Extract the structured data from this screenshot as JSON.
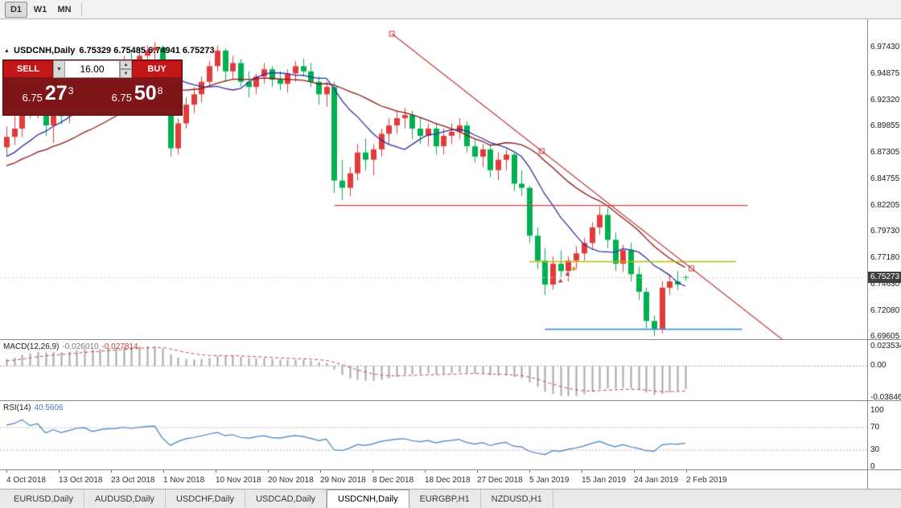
{
  "topbar": {
    "timeframes": [
      {
        "label": "D1",
        "active": true
      },
      {
        "label": "W1",
        "active": false
      },
      {
        "label": "MN",
        "active": false
      }
    ]
  },
  "chart": {
    "symbol_title": "USDCNH,Daily",
    "ohlc": "6.75329 6.75485 6.74941 6.75273"
  },
  "trade_panel": {
    "sell_label": "SELL",
    "buy_label": "BUY",
    "volume": "16.00",
    "sell_price": {
      "main": "6.75",
      "big": "27",
      "sup": "3"
    },
    "buy_price": {
      "main": "6.75",
      "big": "50",
      "sup": "8"
    }
  },
  "price_axis": {
    "labels": [
      "6.97430",
      "6.94875",
      "6.92320",
      "6.89855",
      "6.87305",
      "6.84755",
      "6.82205",
      "6.79730",
      "6.77180",
      "6.74630",
      "6.72080",
      "6.69605"
    ],
    "current": "6.75273"
  },
  "macd": {
    "name": "MACD(12,26,9)",
    "value_main": "-0.026010",
    "value_signal": "-0.027814",
    "axis": [
      "0.023534",
      "0.00",
      "-0.038466"
    ]
  },
  "rsi": {
    "name": "RSI(14)",
    "value": "40.5606",
    "axis": [
      "100",
      "70",
      "30",
      "0"
    ]
  },
  "date_axis": [
    "4 Oct 2018",
    "13 Oct 2018",
    "23 Oct 2018",
    "1 Nov 2018",
    "10 Nov 2018",
    "20 Nov 2018",
    "29 Nov 2018",
    "8 Dec 2018",
    "18 Dec 2018",
    "27 Dec 2018",
    "5 Jan 2019",
    "15 Jan 2019",
    "24 Jan 2019",
    "2 Feb 2019"
  ],
  "tabs": [
    {
      "label": "EURUSD,Daily",
      "active": false
    },
    {
      "label": "AUDUSD,Daily",
      "active": false
    },
    {
      "label": "USDCHF,Daily",
      "active": false
    },
    {
      "label": "USDCAD,Daily",
      "active": false
    },
    {
      "label": "USDCNH,Daily",
      "active": true
    },
    {
      "label": "EURGBP,H1",
      "active": false
    },
    {
      "label": "NZDUSD,H1",
      "active": false
    }
  ],
  "chart_data": {
    "type": "candlestick",
    "symbol": "USDCNH",
    "timeframe": "Daily",
    "price_min": 6.695,
    "price_max": 6.998,
    "bid": 6.75273,
    "ask": 6.75508,
    "ma_periods": {
      "fast": 10,
      "slow": 21
    },
    "macd_params": [
      12,
      26,
      9
    ],
    "rsi_period": 14,
    "macd_range": {
      "max": 0.023534,
      "min": -0.038466
    },
    "colors": {
      "bull": "#e23b3b",
      "bear": "#00b050",
      "ma_fast": "#2d2da8",
      "ma_slow": "#8e1212",
      "bid_line": "#c8c8c8",
      "macd_hist": "#a6a6a6",
      "macd_signal": "#cc4444",
      "rsi": "#3f7fc1"
    },
    "hlines": [
      {
        "price": 6.82205,
        "i1": 42,
        "i2": 95,
        "color": "#d24040",
        "width": 1.4
      },
      {
        "price": 6.768,
        "i1": 67,
        "i2": 93.5,
        "color": "#b6ba0c",
        "width": 1.6
      },
      {
        "price": 6.703,
        "i1": 69,
        "i2": 94.3,
        "color": "#4f94d4",
        "width": 1.8
      }
    ],
    "trendline": {
      "i1": 49.4,
      "p1": 6.9872,
      "i2": 87.8,
      "p2": 6.7615,
      "color": "#c03a3a"
    },
    "markers": [
      {
        "i": 71,
        "price": 6.7495,
        "type": "tri",
        "color": "#d04040"
      },
      {
        "i": 71.9,
        "price": 6.756,
        "type": "tri",
        "color": "#d04040"
      },
      {
        "i": 72.7,
        "price": 6.761,
        "type": "diamond",
        "color": "#dba21a"
      }
    ],
    "pre_closes": [
      6.842,
      6.846,
      6.844,
      6.85,
      6.847,
      6.853,
      6.85,
      6.856,
      6.853,
      6.859,
      6.856,
      6.862,
      6.859,
      6.865,
      6.862,
      6.868,
      6.865,
      6.871,
      6.868,
      6.874,
      6.872
    ],
    "candles": [
      [
        6.878,
        6.898,
        6.869,
        6.888
      ],
      [
        6.888,
        6.908,
        6.88,
        6.896
      ],
      [
        6.896,
        6.932,
        6.888,
        6.926
      ],
      [
        6.926,
        6.936,
        6.906,
        6.913
      ],
      [
        6.913,
        6.931,
        6.906,
        6.926
      ],
      [
        6.926,
        6.936,
        6.889,
        6.899
      ],
      [
        6.899,
        6.926,
        6.882,
        6.919
      ],
      [
        6.919,
        6.929,
        6.9,
        6.908
      ],
      [
        6.908,
        6.926,
        6.901,
        6.921
      ],
      [
        6.921,
        6.946,
        6.916,
        6.939
      ],
      [
        6.939,
        6.949,
        6.926,
        6.943
      ],
      [
        6.943,
        6.951,
        6.921,
        6.929
      ],
      [
        6.929,
        6.946,
        6.924,
        6.941
      ],
      [
        6.941,
        6.953,
        6.931,
        6.949
      ],
      [
        6.949,
        6.956,
        6.939,
        6.951
      ],
      [
        6.951,
        6.966,
        6.943,
        6.961
      ],
      [
        6.961,
        6.971,
        6.951,
        6.957
      ],
      [
        6.957,
        6.973,
        6.95,
        6.966
      ],
      [
        6.966,
        6.976,
        6.956,
        6.971
      ],
      [
        6.971,
        6.979,
        6.961,
        6.974
      ],
      [
        6.974,
        6.976,
        6.919,
        6.927
      ],
      [
        6.927,
        6.934,
        6.869,
        6.877
      ],
      [
        6.877,
        6.906,
        6.871,
        6.901
      ],
      [
        6.901,
        6.926,
        6.896,
        6.919
      ],
      [
        6.919,
        6.936,
        6.911,
        6.929
      ],
      [
        6.929,
        6.946,
        6.921,
        6.941
      ],
      [
        6.941,
        6.961,
        6.936,
        6.956
      ],
      [
        6.956,
        6.976,
        6.951,
        6.971
      ],
      [
        6.971,
        6.973,
        6.941,
        6.951
      ],
      [
        6.951,
        6.966,
        6.943,
        6.959
      ],
      [
        6.959,
        6.963,
        6.936,
        6.941
      ],
      [
        6.941,
        6.951,
        6.926,
        6.936
      ],
      [
        6.936,
        6.949,
        6.929,
        6.946
      ],
      [
        6.946,
        6.959,
        6.939,
        6.953
      ],
      [
        6.953,
        6.956,
        6.936,
        6.943
      ],
      [
        6.943,
        6.951,
        6.933,
        6.939
      ],
      [
        6.939,
        6.953,
        6.931,
        6.949
      ],
      [
        6.949,
        6.961,
        6.941,
        6.956
      ],
      [
        6.956,
        6.963,
        6.946,
        6.951
      ],
      [
        6.951,
        6.959,
        6.936,
        6.941
      ],
      [
        6.941,
        6.946,
        6.919,
        6.929
      ],
      [
        6.929,
        6.941,
        6.917,
        6.936
      ],
      [
        6.936,
        6.941,
        6.834,
        6.846
      ],
      [
        6.846,
        6.866,
        6.827,
        6.839
      ],
      [
        6.839,
        6.859,
        6.831,
        6.853
      ],
      [
        6.853,
        6.881,
        6.846,
        6.873
      ],
      [
        6.873,
        6.886,
        6.856,
        6.866
      ],
      [
        6.866,
        6.881,
        6.851,
        6.876
      ],
      [
        6.876,
        6.896,
        6.869,
        6.891
      ],
      [
        6.891,
        6.906,
        6.881,
        6.899
      ],
      [
        6.899,
        6.913,
        6.891,
        6.906
      ],
      [
        6.906,
        6.916,
        6.896,
        6.909
      ],
      [
        6.909,
        6.913,
        6.886,
        6.896
      ],
      [
        6.896,
        6.906,
        6.881,
        6.889
      ],
      [
        6.889,
        6.901,
        6.879,
        6.896
      ],
      [
        6.896,
        6.901,
        6.871,
        6.879
      ],
      [
        6.879,
        6.896,
        6.871,
        6.889
      ],
      [
        6.889,
        6.901,
        6.881,
        6.893
      ],
      [
        6.893,
        6.906,
        6.886,
        6.899
      ],
      [
        6.899,
        6.903,
        6.873,
        6.879
      ],
      [
        6.879,
        6.886,
        6.863,
        6.869
      ],
      [
        6.869,
        6.881,
        6.859,
        6.876
      ],
      [
        6.876,
        6.881,
        6.849,
        6.856
      ],
      [
        6.856,
        6.873,
        6.846,
        6.866
      ],
      [
        6.866,
        6.876,
        6.856,
        6.871
      ],
      [
        6.871,
        6.873,
        6.836,
        6.843
      ],
      [
        6.843,
        6.856,
        6.831,
        6.839
      ],
      [
        6.839,
        6.841,
        6.786,
        6.793
      ],
      [
        6.793,
        6.801,
        6.761,
        6.769
      ],
      [
        6.769,
        6.781,
        6.736,
        6.746
      ],
      [
        6.746,
        6.773,
        6.741,
        6.766
      ],
      [
        6.766,
        6.779,
        6.753,
        6.759
      ],
      [
        6.759,
        6.773,
        6.749,
        6.769
      ],
      [
        6.769,
        6.783,
        6.761,
        6.776
      ],
      [
        6.776,
        6.791,
        6.769,
        6.786
      ],
      [
        6.786,
        6.806,
        6.779,
        6.801
      ],
      [
        6.801,
        6.821,
        6.794,
        6.813
      ],
      [
        6.813,
        6.819,
        6.781,
        6.789
      ],
      [
        6.789,
        6.796,
        6.759,
        6.766
      ],
      [
        6.766,
        6.784,
        6.758,
        6.779
      ],
      [
        6.779,
        6.786,
        6.749,
        6.756
      ],
      [
        6.756,
        6.763,
        6.731,
        6.739
      ],
      [
        6.739,
        6.743,
        6.704,
        6.711
      ],
      [
        6.711,
        6.716,
        6.6965,
        6.703
      ],
      [
        6.703,
        6.749,
        6.699,
        6.743
      ],
      [
        6.743,
        6.756,
        6.736,
        6.749
      ],
      [
        6.749,
        6.759,
        6.741,
        6.746
      ],
      [
        6.75329,
        6.75485,
        6.74941,
        6.75273
      ]
    ]
  }
}
